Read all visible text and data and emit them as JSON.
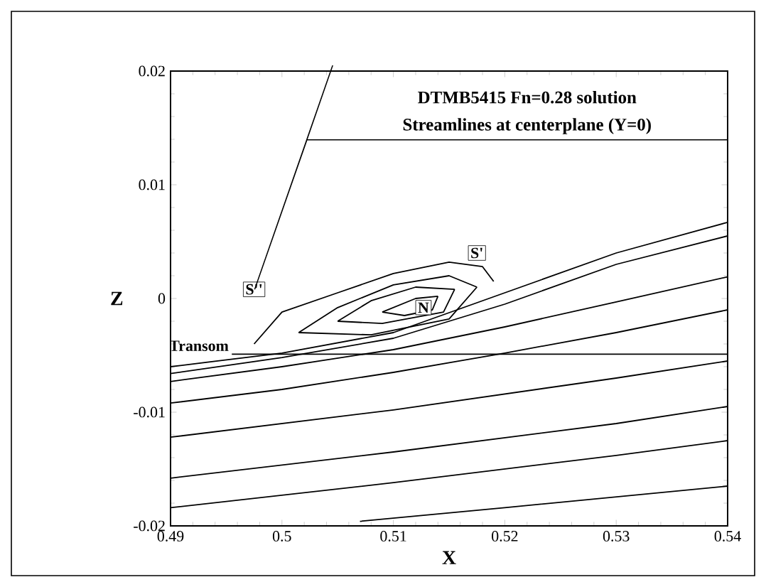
{
  "chart_data": {
    "type": "line",
    "title": "DTMB5415 Fn=0.28 solution",
    "subtitle": "Streamlines at centerplane (Y=0)",
    "xlabel": "X",
    "ylabel": "Z",
    "xlim": [
      0.49,
      0.54
    ],
    "ylim": [
      -0.02,
      0.02
    ],
    "xticks": [
      0.49,
      0.5,
      0.51,
      0.52,
      0.53,
      0.54
    ],
    "yticks": [
      -0.02,
      -0.01,
      0,
      0.01,
      0.02
    ],
    "marker": "none",
    "line_style": "solid",
    "annotations": [
      {
        "text": "S''",
        "x": 0.4975,
        "y": 0.0008
      },
      {
        "text": "S'",
        "x": 0.5175,
        "y": 0.004
      },
      {
        "text": "N",
        "x": 0.5127,
        "y": -0.0008
      },
      "Transom"
    ],
    "series": [
      {
        "color": "#000000",
        "x": [
          0.49,
          0.5,
          0.51,
          0.52,
          0.53,
          0.54
        ],
        "values": [
          -0.006,
          -0.0048,
          -0.003,
          0.0005,
          0.004,
          0.0067
        ]
      },
      {
        "color": "#000000",
        "x": [
          0.49,
          0.5,
          0.51,
          0.52,
          0.53,
          0.54
        ],
        "values": [
          -0.0066,
          -0.0052,
          -0.0035,
          -0.0005,
          0.003,
          0.0055
        ]
      },
      {
        "color": "#000000",
        "x": [
          0.49,
          0.5,
          0.51,
          0.52,
          0.53,
          0.54
        ],
        "values": [
          -0.0073,
          -0.006,
          -0.0045,
          -0.0025,
          -0.0003,
          0.0019
        ]
      },
      {
        "color": "#000000",
        "x": [
          0.49,
          0.5,
          0.51,
          0.52,
          0.53,
          0.54
        ],
        "values": [
          -0.0092,
          -0.008,
          -0.0065,
          -0.0048,
          -0.003,
          -0.001
        ]
      },
      {
        "color": "#000000",
        "x": [
          0.49,
          0.51,
          0.53,
          0.54
        ],
        "values": [
          -0.0122,
          -0.0098,
          -0.007,
          -0.0055
        ]
      },
      {
        "color": "#000000",
        "x": [
          0.49,
          0.51,
          0.53,
          0.54
        ],
        "values": [
          -0.0158,
          -0.0135,
          -0.011,
          -0.0095
        ]
      },
      {
        "color": "#000000",
        "x": [
          0.49,
          0.51,
          0.53,
          0.54
        ],
        "values": [
          -0.0184,
          -0.0162,
          -0.0138,
          -0.0125
        ]
      },
      {
        "color": "#000000",
        "x": [
          0.507,
          0.52,
          0.54
        ],
        "values": [
          -0.0196,
          -0.0184,
          -0.0165
        ]
      },
      {
        "color": "#000000",
        "x": [
          0.4975,
          0.5,
          0.505,
          0.51,
          0.515,
          0.518,
          0.519
        ],
        "values": [
          -0.004,
          -0.0012,
          0.0005,
          0.0022,
          0.0032,
          0.0028,
          0.0015
        ]
      },
      {
        "color": "#000000",
        "x": [
          0.5015,
          0.505,
          0.51,
          0.515,
          0.5175
        ],
        "values": [
          -0.003,
          -0.0008,
          0.0012,
          0.002,
          0.001
        ]
      },
      {
        "color": "#000000",
        "x": [
          0.5015,
          0.508,
          0.515,
          0.5175
        ],
        "values": [
          -0.003,
          -0.0032,
          -0.0018,
          0.001
        ]
      },
      {
        "color": "#000000",
        "x": [
          0.505,
          0.508,
          0.512,
          0.5155
        ],
        "values": [
          -0.002,
          -0.0002,
          0.001,
          0.0008
        ]
      },
      {
        "color": "#000000",
        "x": [
          0.505,
          0.509,
          0.5145,
          0.5155
        ],
        "values": [
          -0.002,
          -0.0022,
          -0.0012,
          0.0008
        ]
      },
      {
        "color": "#000000",
        "x": [
          0.509,
          0.512,
          0.514
        ],
        "values": [
          -0.0012,
          0.0,
          0.0002
        ]
      },
      {
        "color": "#000000",
        "x": [
          0.509,
          0.511,
          0.5135,
          0.514
        ],
        "values": [
          -0.0012,
          -0.0015,
          -0.001,
          0.0002
        ]
      },
      {
        "color": "#000000",
        "x": [
          0.4955,
          0.54
        ],
        "values": [
          -0.0049,
          -0.0049
        ]
      }
    ]
  }
}
